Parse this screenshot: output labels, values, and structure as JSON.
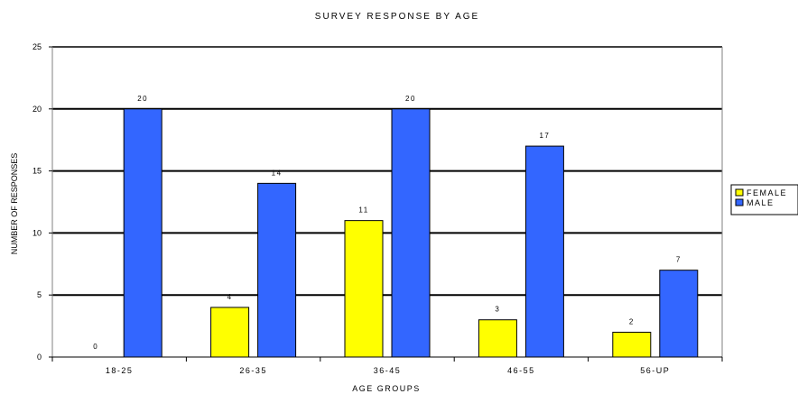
{
  "chart_data": {
    "type": "bar",
    "title": "SURVEY RESPONSE BY AGE",
    "xlabel": "AGE GROUPS",
    "ylabel": "NUMBER OF RESPONSES",
    "categories": [
      "18-25",
      "26-35",
      "36-45",
      "46-55",
      "56-UP"
    ],
    "ylim": [
      0,
      25
    ],
    "yticks": [
      0,
      5,
      10,
      15,
      20,
      25
    ],
    "grid": true,
    "legend_position": "right",
    "series": [
      {
        "name": "FEMALE",
        "color": "#ffff00",
        "values": [
          0,
          4,
          11,
          3,
          2
        ]
      },
      {
        "name": "MALE",
        "color": "#3366ff",
        "values": [
          20,
          14,
          20,
          17,
          7
        ]
      }
    ]
  }
}
